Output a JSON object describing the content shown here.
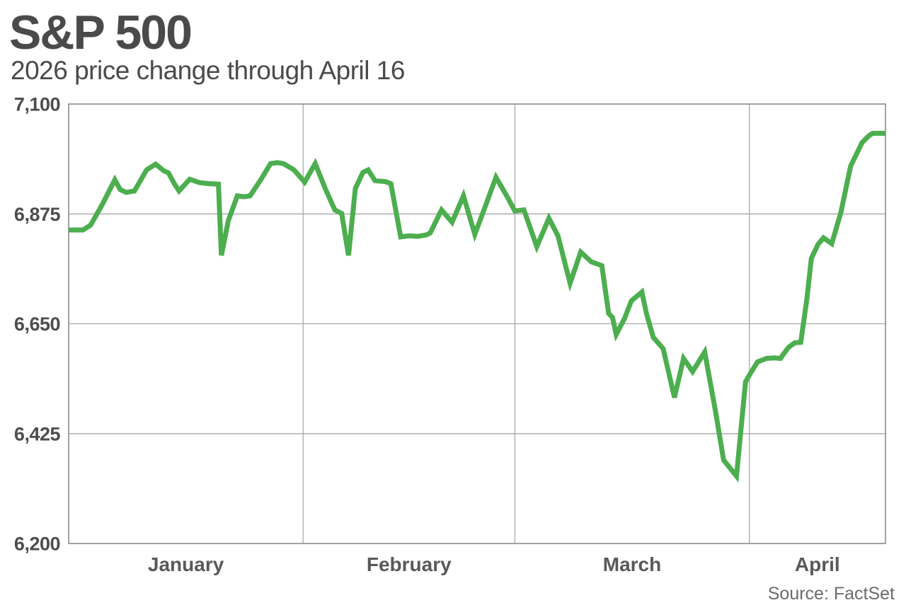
{
  "header": {
    "title": "S&P 500",
    "subtitle": "2026 price change through April 16"
  },
  "source": "Source: FactSet",
  "colors": {
    "line": "#4cae4f",
    "grid": "#a8a8a8",
    "border": "#8c8c8c",
    "title_text": "#4a4a4a",
    "axis_text": "#4d4d4d",
    "month_text": "#595959",
    "source_text": "#6b6b6b",
    "background": "#ffffff"
  },
  "chart_data": {
    "type": "line",
    "title": "S&P 500",
    "subtitle": "2026 price change through April 16",
    "source": "Source: FactSet",
    "legend": "none",
    "grid": "on",
    "x_unit": "day_of_year_2026",
    "x_range": [
      1,
      109
    ],
    "x_axis": {
      "month_labels": [
        "January",
        "February",
        "March",
        "April"
      ],
      "month_start_days": [
        1,
        32,
        60,
        91
      ],
      "month_end_days": [
        32,
        60,
        91,
        109
      ],
      "gridlines_at_days": [
        32,
        60,
        91
      ]
    },
    "y_axis": {
      "range": [
        6200,
        7100
      ],
      "ticks": [
        7100,
        6875,
        6650,
        6425,
        6200
      ],
      "tick_labels": [
        "7,100",
        "6,875",
        "6,650",
        "6,425",
        "6,200"
      ],
      "gridlines": [
        6875,
        6650,
        6425
      ]
    },
    "series": [
      {
        "name": "S&P 500",
        "color": "#4cae4f",
        "x": [
          1.0,
          2.9,
          3.9,
          5.5,
          7.1,
          7.8,
          8.6,
          9.7,
          11.3,
          12.5,
          13.6,
          14.2,
          15.0,
          15.6,
          17.0,
          18.3,
          19.5,
          20.8,
          21.2,
          22.1,
          23.3,
          24.2,
          25.0,
          26.4,
          27.7,
          28.6,
          29.4,
          30.8,
          32.2,
          33.6,
          35.0,
          36.2,
          37.1,
          38.0,
          38.9,
          39.9,
          40.6,
          41.5,
          42.9,
          43.6,
          44.9,
          46.0,
          47.2,
          48.3,
          48.8,
          50.3,
          51.7,
          53.2,
          54.7,
          56.1,
          57.5,
          59.1,
          60.0,
          61.2,
          62.9,
          64.5,
          65.7,
          67.3,
          68.7,
          70.1,
          71.5,
          72.4,
          72.9,
          73.4,
          74.5,
          75.4,
          76.8,
          77.4,
          78.3,
          79.6,
          81.1,
          82.3,
          83.5,
          85.1,
          86.5,
          87.6,
          89.3,
          90.5,
          91.2,
          92.1,
          93.3,
          94.3,
          95.1,
          96.2,
          97.0,
          97.8,
          98.6,
          99.2,
          100.1,
          100.8,
          101.9,
          103.1,
          104.4,
          105.9,
          106.8,
          107.3,
          109.0
        ],
        "values": [
          6842,
          6842,
          6852,
          6896,
          6945,
          6925,
          6919,
          6922,
          6965,
          6977,
          6963,
          6959,
          6936,
          6922,
          6946,
          6939,
          6937,
          6936,
          6790,
          6861,
          6912,
          6910,
          6912,
          6945,
          6978,
          6980,
          6978,
          6965,
          6940,
          6978,
          6924,
          6883,
          6876,
          6790,
          6927,
          6960,
          6965,
          6943,
          6941,
          6937,
          6828,
          6830,
          6829,
          6832,
          6836,
          6883,
          6858,
          6912,
          6833,
          6891,
          6950,
          6907,
          6881,
          6883,
          6808,
          6866,
          6830,
          6733,
          6797,
          6777,
          6769,
          6671,
          6663,
          6628,
          6661,
          6697,
          6715,
          6671,
          6622,
          6599,
          6499,
          6579,
          6552,
          6592,
          6473,
          6371,
          6338,
          6531,
          6550,
          6572,
          6579,
          6580,
          6579,
          6602,
          6611,
          6612,
          6700,
          6784,
          6813,
          6826,
          6814,
          6878,
          6973,
          7021,
          7035,
          7040,
          7040
        ]
      }
    ]
  }
}
